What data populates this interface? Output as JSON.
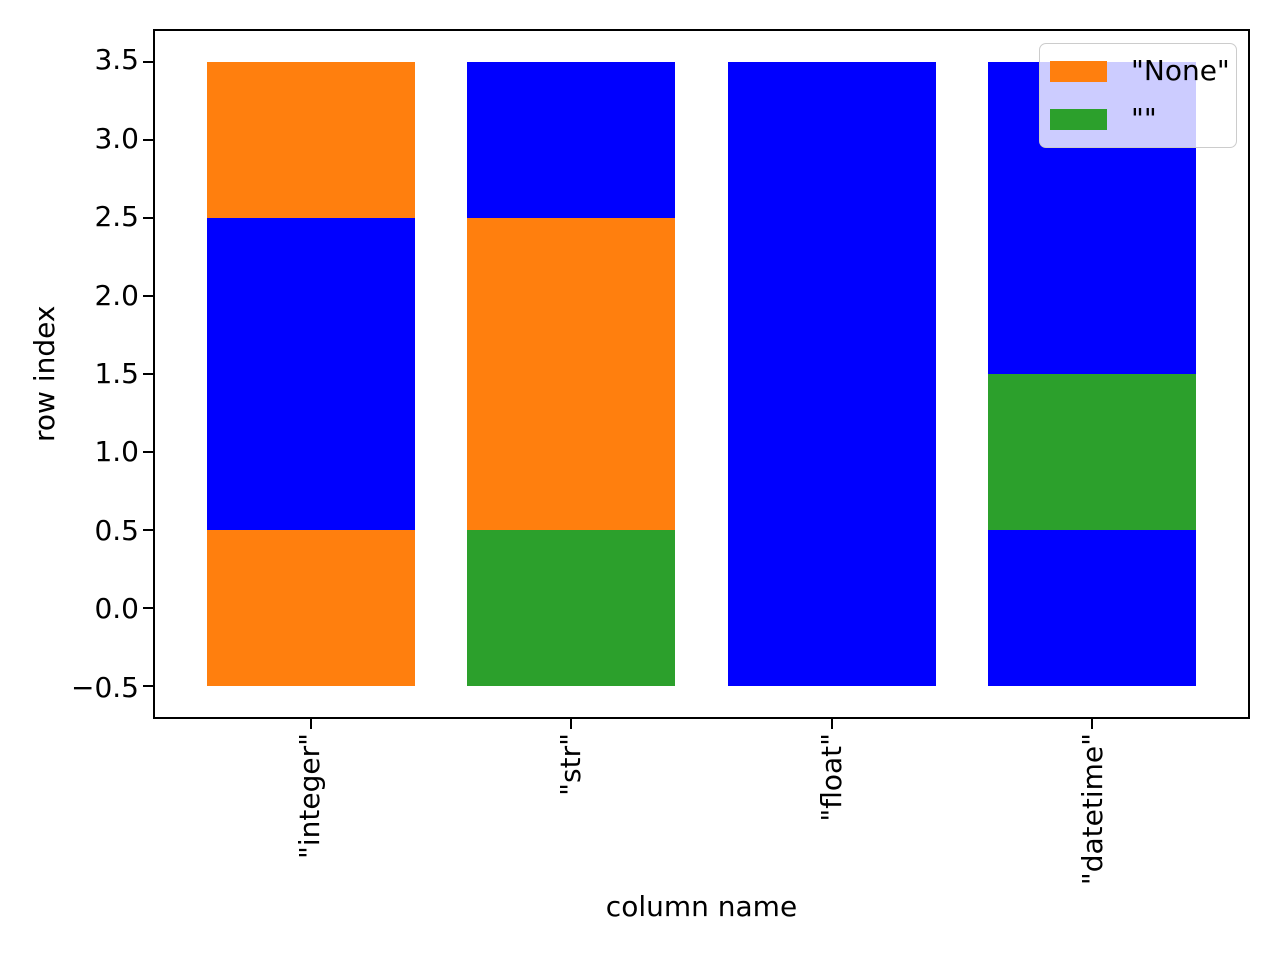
{
  "chart_data": {
    "type": "bar",
    "orientation": "vertical",
    "stacked": true,
    "title": "",
    "xlabel": "column name",
    "ylabel": "row index",
    "categories": [
      "\"integer\"",
      "\"str\"",
      "\"float\"",
      "\"datetime\""
    ],
    "x_positions": [
      0,
      1,
      2,
      3
    ],
    "bar_width": 0.8,
    "xlim": [
      -0.6,
      3.6
    ],
    "ylim": [
      -0.7,
      3.7
    ],
    "grid": false,
    "yticks": [
      {
        "v": 3.5,
        "label": "3.5"
      },
      {
        "v": 3.0,
        "label": "3.0"
      },
      {
        "v": 2.5,
        "label": "2.5"
      },
      {
        "v": 2.0,
        "label": "2.0"
      },
      {
        "v": 1.5,
        "label": "1.5"
      },
      {
        "v": 1.0,
        "label": "1.0"
      },
      {
        "v": 0.5,
        "label": "0.5"
      },
      {
        "v": 0.0,
        "label": "0.0"
      },
      {
        "v": -0.5,
        "label": "−0.5"
      }
    ],
    "value_colors": {
      "valid": "#0000ff",
      "none": "#ff7f0e",
      "empty": "#2ca02c"
    },
    "columns": [
      {
        "name": "\"integer\"",
        "segments": [
          {
            "from": -0.5,
            "to": 0.5,
            "kind": "none"
          },
          {
            "from": 0.5,
            "to": 2.5,
            "kind": "valid"
          },
          {
            "from": 2.5,
            "to": 3.5,
            "kind": "none"
          }
        ]
      },
      {
        "name": "\"str\"",
        "segments": [
          {
            "from": -0.5,
            "to": 0.5,
            "kind": "empty"
          },
          {
            "from": 0.5,
            "to": 2.5,
            "kind": "none"
          },
          {
            "from": 2.5,
            "to": 3.5,
            "kind": "valid"
          }
        ]
      },
      {
        "name": "\"float\"",
        "segments": [
          {
            "from": -0.5,
            "to": 3.5,
            "kind": "valid"
          }
        ]
      },
      {
        "name": "\"datetime\"",
        "segments": [
          {
            "from": -0.5,
            "to": 0.5,
            "kind": "valid"
          },
          {
            "from": 0.5,
            "to": 1.5,
            "kind": "empty"
          },
          {
            "from": 1.5,
            "to": 3.5,
            "kind": "valid"
          }
        ]
      }
    ],
    "legend": {
      "position": "upper right",
      "entries": [
        {
          "label": "\"None\"",
          "color": "#ff7f0e"
        },
        {
          "label": "\"\"",
          "color": "#2ca02c"
        }
      ]
    }
  }
}
